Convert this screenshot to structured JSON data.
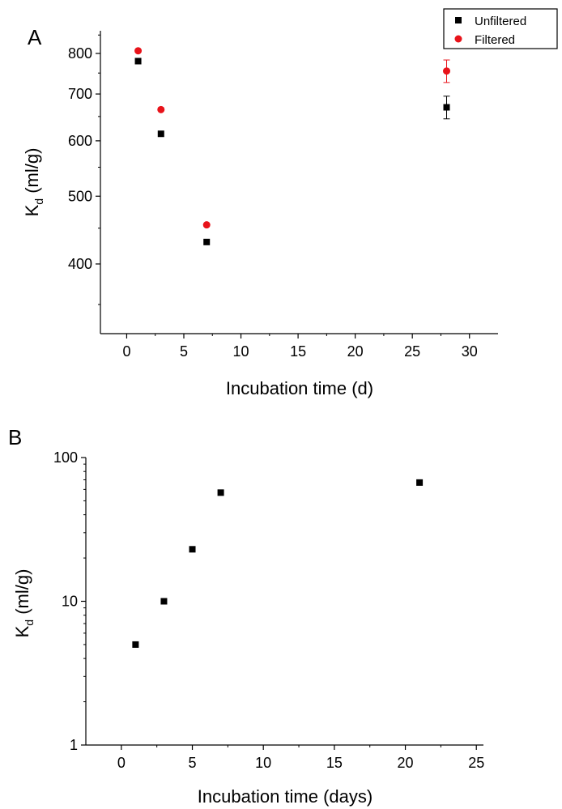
{
  "colors": {
    "unfiltered": "#000000",
    "filtered": "#e8131a"
  },
  "chart_data": [
    {
      "type": "scatter",
      "panel_label": "A",
      "title": "",
      "xlabel": "Incubation time (d)",
      "ylabel_main": "K",
      "ylabel_sub": "d",
      "ylabel_unit": " (ml/g)",
      "xlim": [
        -2.3,
        32.5
      ],
      "ylim": [
        318,
        862
      ],
      "yscale": "log",
      "x_ticks": [
        0,
        5,
        10,
        15,
        20,
        25,
        30
      ],
      "x_tick_labels": [
        "0",
        "5",
        "10",
        "15",
        "20",
        "25",
        "30"
      ],
      "y_ticks": [
        400,
        500,
        600,
        700,
        800
      ],
      "y_tick_labels": [
        "400",
        "500",
        "600",
        "700",
        "800"
      ],
      "legend": {
        "placement": "top-right",
        "entries": [
          "Unfiltered",
          "Filtered"
        ]
      },
      "series": [
        {
          "name": "Unfiltered",
          "marker": "square",
          "color_key": "unfiltered",
          "points": [
            {
              "x": 1,
              "y": 780
            },
            {
              "x": 3,
              "y": 614
            },
            {
              "x": 7,
              "y": 430
            },
            {
              "x": 28,
              "y": 670,
              "err": 25
            }
          ]
        },
        {
          "name": "Filtered",
          "marker": "circle",
          "color_key": "filtered",
          "points": [
            {
              "x": 1,
              "y": 807
            },
            {
              "x": 3,
              "y": 665
            },
            {
              "x": 7,
              "y": 455
            },
            {
              "x": 28,
              "y": 755,
              "err": 28
            }
          ]
        }
      ]
    },
    {
      "type": "scatter",
      "panel_label": "B",
      "title": "",
      "xlabel": "Incubation time (days)",
      "ylabel_main": "K",
      "ylabel_sub": "d",
      "ylabel_unit": " (ml/g)",
      "xlim": [
        -2.5,
        25.5
      ],
      "ylim": [
        1,
        100
      ],
      "yscale": "log",
      "x_ticks": [
        0,
        5,
        10,
        15,
        20,
        25
      ],
      "x_tick_labels": [
        "0",
        "5",
        "10",
        "15",
        "20",
        "25"
      ],
      "y_ticks": [
        1,
        10,
        100
      ],
      "y_tick_labels": [
        "1",
        "10",
        "100"
      ],
      "series": [
        {
          "marker": "square",
          "color_key": "unfiltered",
          "points": [
            {
              "x": 1,
              "y": 5
            },
            {
              "x": 3,
              "y": 10
            },
            {
              "x": 5,
              "y": 23
            },
            {
              "x": 7,
              "y": 57
            },
            {
              "x": 21,
              "y": 67
            }
          ]
        }
      ]
    }
  ]
}
